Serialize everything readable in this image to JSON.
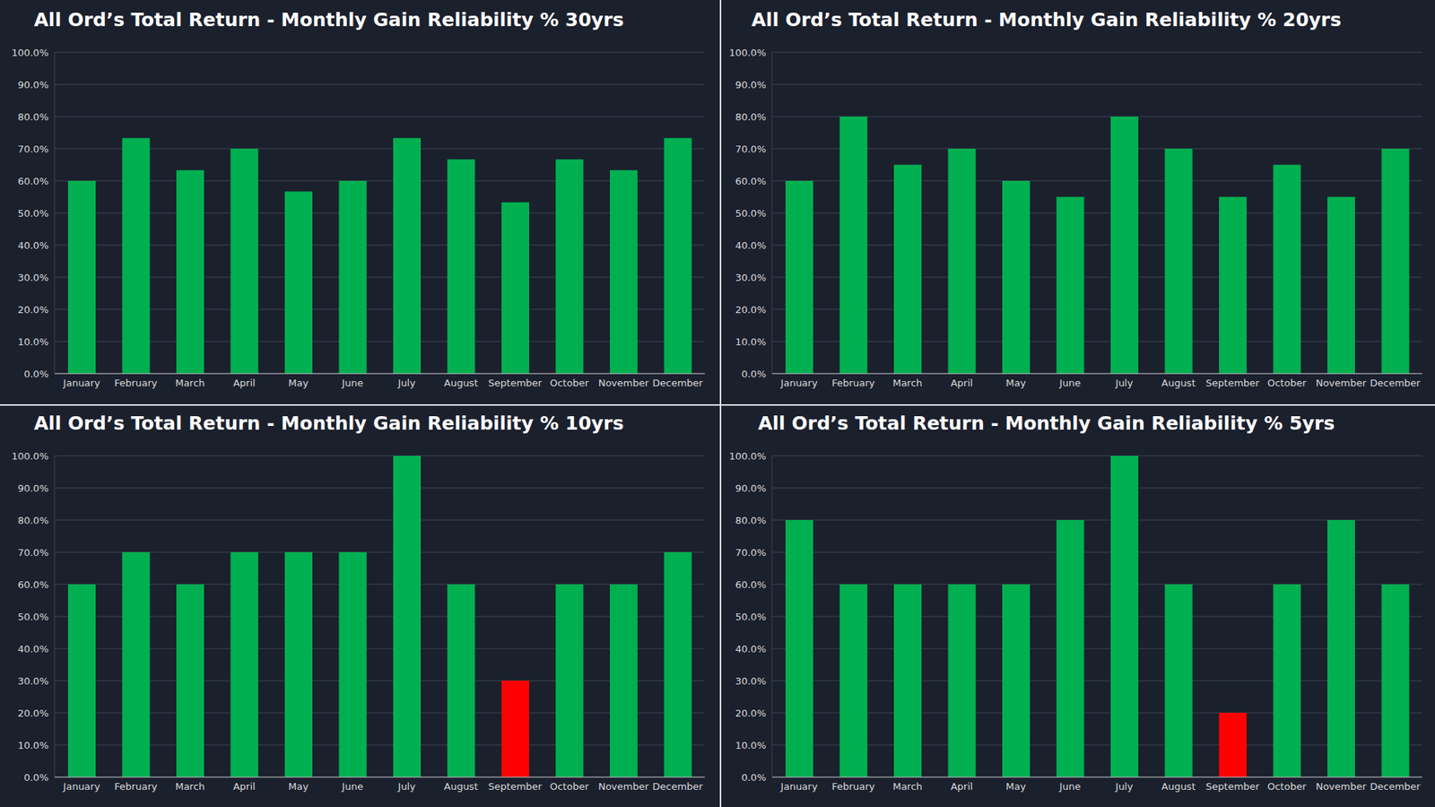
{
  "chart_data": [
    {
      "type": "bar",
      "title": "All Ord’s Total Return - Monthly Gain Reliability % 30yrs",
      "categories": [
        "January",
        "February",
        "March",
        "April",
        "May",
        "June",
        "July",
        "August",
        "September",
        "October",
        "November",
        "December"
      ],
      "values": [
        60,
        73.3,
        63.3,
        70,
        56.7,
        60,
        73.3,
        66.7,
        53.3,
        66.7,
        63.3,
        73.3
      ],
      "colors": [
        "#00b050",
        "#00b050",
        "#00b050",
        "#00b050",
        "#00b050",
        "#00b050",
        "#00b050",
        "#00b050",
        "#00b050",
        "#00b050",
        "#00b050",
        "#00b050"
      ],
      "ylim": [
        0,
        100
      ],
      "yticks": [
        {
          "value": 0,
          "label": "0.0%"
        },
        {
          "value": 10,
          "label": "10.0%"
        },
        {
          "value": 20,
          "label": "20.0%"
        },
        {
          "value": 30,
          "label": "30.0%"
        },
        {
          "value": 40,
          "label": "40.0%"
        },
        {
          "value": 50,
          "label": "50.0%"
        },
        {
          "value": 60,
          "label": "60.0%"
        },
        {
          "value": 70,
          "label": "70.0%"
        },
        {
          "value": 80,
          "label": "80.0%"
        },
        {
          "value": 90,
          "label": "90.0%"
        },
        {
          "value": 100,
          "label": "100.0%"
        }
      ],
      "grid": true
    },
    {
      "type": "bar",
      "title": "All Ord’s Total Return - Monthly Gain Reliability % 20yrs",
      "categories": [
        "January",
        "February",
        "March",
        "April",
        "May",
        "June",
        "July",
        "August",
        "September",
        "October",
        "November",
        "December"
      ],
      "values": [
        60,
        80,
        65,
        70,
        60,
        55,
        80,
        70,
        55,
        65,
        55,
        70
      ],
      "colors": [
        "#00b050",
        "#00b050",
        "#00b050",
        "#00b050",
        "#00b050",
        "#00b050",
        "#00b050",
        "#00b050",
        "#00b050",
        "#00b050",
        "#00b050",
        "#00b050"
      ],
      "ylim": [
        0,
        100
      ],
      "yticks": [
        {
          "value": 0,
          "label": "0.0%"
        },
        {
          "value": 10,
          "label": "10.0%"
        },
        {
          "value": 20,
          "label": "20.0%"
        },
        {
          "value": 30,
          "label": "30.0%"
        },
        {
          "value": 40,
          "label": "40.0%"
        },
        {
          "value": 50,
          "label": "50.0%"
        },
        {
          "value": 60,
          "label": "60.0%"
        },
        {
          "value": 70,
          "label": "70.0%"
        },
        {
          "value": 80,
          "label": "80.0%"
        },
        {
          "value": 90,
          "label": "90.0%"
        },
        {
          "value": 100,
          "label": "100.0%"
        }
      ],
      "grid": true
    },
    {
      "type": "bar",
      "title": "All Ord’s Total Return - Monthly Gain Reliability % 10yrs",
      "categories": [
        "January",
        "February",
        "March",
        "April",
        "May",
        "June",
        "July",
        "August",
        "September",
        "October",
        "November",
        "December"
      ],
      "values": [
        60,
        70,
        60,
        70,
        70,
        70,
        100,
        60,
        30,
        60,
        60,
        70
      ],
      "colors": [
        "#00b050",
        "#00b050",
        "#00b050",
        "#00b050",
        "#00b050",
        "#00b050",
        "#00b050",
        "#00b050",
        "#ff0000",
        "#00b050",
        "#00b050",
        "#00b050"
      ],
      "ylim": [
        0,
        100
      ],
      "yticks": [
        {
          "value": 0,
          "label": "0.0%"
        },
        {
          "value": 10,
          "label": "10.0%"
        },
        {
          "value": 20,
          "label": "20.0%"
        },
        {
          "value": 30,
          "label": "30.0%"
        },
        {
          "value": 40,
          "label": "40.0%"
        },
        {
          "value": 50,
          "label": "50.0%"
        },
        {
          "value": 60,
          "label": "60.0%"
        },
        {
          "value": 70,
          "label": "70.0%"
        },
        {
          "value": 80,
          "label": "80.0%"
        },
        {
          "value": 90,
          "label": "90.0%"
        },
        {
          "value": 100,
          "label": "100.0%"
        }
      ],
      "grid": true
    },
    {
      "type": "bar",
      "title": "All Ord’s Total Return - Monthly Gain Reliability % 5yrs",
      "categories": [
        "January",
        "February",
        "March",
        "April",
        "May",
        "June",
        "July",
        "August",
        "September",
        "October",
        "November",
        "December"
      ],
      "values": [
        80,
        60,
        60,
        60,
        60,
        80,
        100,
        60,
        20,
        60,
        80,
        60
      ],
      "colors": [
        "#00b050",
        "#00b050",
        "#00b050",
        "#00b050",
        "#00b050",
        "#00b050",
        "#00b050",
        "#00b050",
        "#ff0000",
        "#00b050",
        "#00b050",
        "#00b050"
      ],
      "ylim": [
        0,
        100
      ],
      "yticks": [
        {
          "value": 0,
          "label": "0.0%"
        },
        {
          "value": 10,
          "label": "10.0%"
        },
        {
          "value": 20,
          "label": "20.0%"
        },
        {
          "value": 30,
          "label": "30.0%"
        },
        {
          "value": 40,
          "label": "40.0%"
        },
        {
          "value": 50,
          "label": "50.0%"
        },
        {
          "value": 60,
          "label": "60.0%"
        },
        {
          "value": 70,
          "label": "70.0%"
        },
        {
          "value": 80,
          "label": "80.0%"
        },
        {
          "value": 90,
          "label": "90.0%"
        },
        {
          "value": 100,
          "label": "100.0%"
        }
      ],
      "grid": true
    }
  ]
}
